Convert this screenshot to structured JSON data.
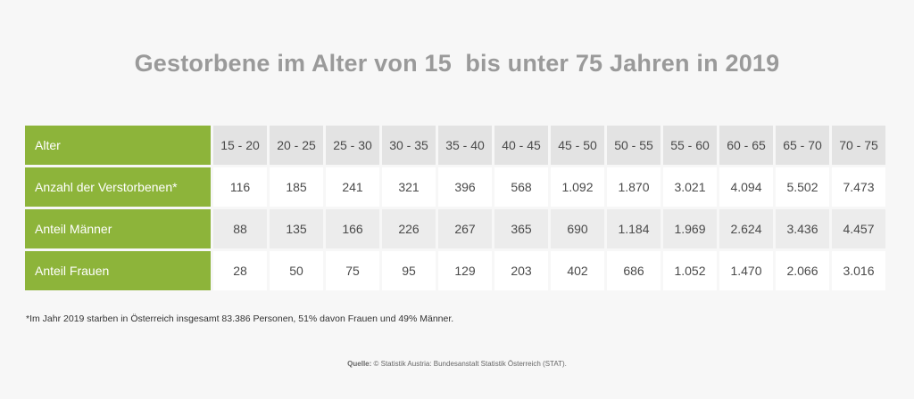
{
  "title": "Gestorbene im Alter von 15  bis unter 75 Jahren in 2019",
  "chart_data": {
    "type": "table",
    "columns_label": "Alter",
    "columns": [
      "15 - 20",
      "20 - 25",
      "25 - 30",
      "30 - 35",
      "35 - 40",
      "40 - 45",
      "45 - 50",
      "50 - 55",
      "55 - 60",
      "60 - 65",
      "65 - 70",
      "70 - 75"
    ],
    "rows": [
      {
        "label": "Anzahl der Verstorbenen*",
        "values": [
          "116",
          "185",
          "241",
          "321",
          "396",
          "568",
          "1.092",
          "1.870",
          "3.021",
          "4.094",
          "5.502",
          "7.473"
        ]
      },
      {
        "label": "Anteil Männer",
        "values": [
          "88",
          "135",
          "166",
          "226",
          "267",
          "365",
          "690",
          "1.184",
          "1.969",
          "2.624",
          "3.436",
          "4.457"
        ]
      },
      {
        "label": "Anteil Frauen",
        "values": [
          "28",
          "50",
          "75",
          "95",
          "129",
          "203",
          "402",
          "686",
          "1.052",
          "1.470",
          "2.066",
          "3.016"
        ]
      }
    ]
  },
  "footnote": "*Im Jahr 2019 starben in Österreich insgesamt 83.386 Personen, 51% davon Frauen und 49% Männer.",
  "source": {
    "label": "Quelle:",
    "text": " © Statistik Austria: Bundesanstalt Statistik Österreich (STAT)."
  },
  "colors": {
    "label_bg": "#8db43a",
    "title": "#9a9a9a"
  }
}
